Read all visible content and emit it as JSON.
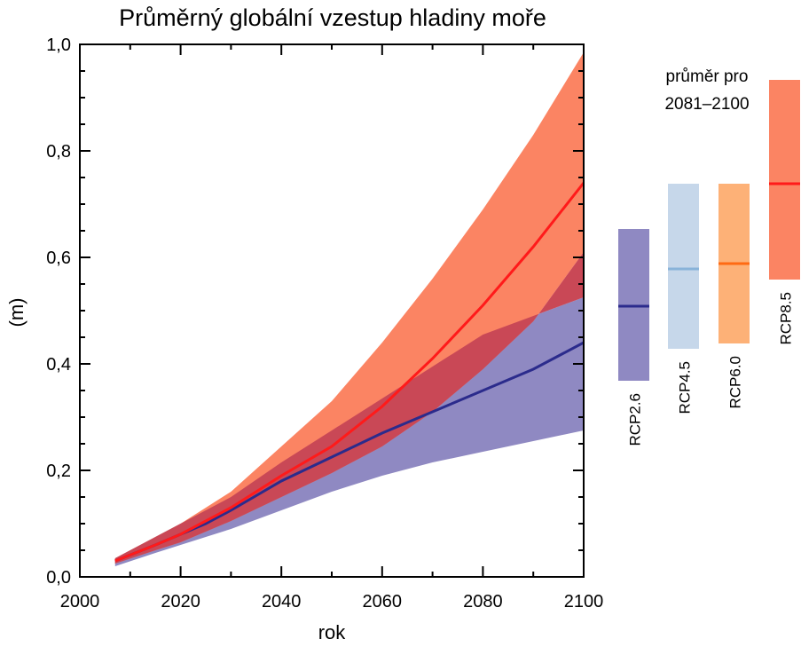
{
  "chart_data": {
    "type": "area",
    "title": "Průměrný globální vzestup hladiny moře",
    "xlabel": "rok",
    "ylabel": "(m)",
    "xlim": [
      2000,
      2100
    ],
    "ylim": [
      0.0,
      1.0
    ],
    "xticks": [
      2000,
      2020,
      2040,
      2060,
      2080,
      2100
    ],
    "xtick_labels": [
      "2000",
      "2020",
      "2040",
      "2060",
      "2080",
      "2100"
    ],
    "yticks": [
      0.0,
      0.2,
      0.4,
      0.6,
      0.8,
      1.0
    ],
    "ytick_labels": [
      "0,0",
      "0,2",
      "0,4",
      "0,6",
      "0,8",
      "1,0"
    ],
    "colors": {
      "rcp26_line": "#2b2b8c",
      "rcp26_band": "#8f89c2",
      "rcp85_line": "#ff1a1a",
      "rcp85_band": "#fb8463",
      "overlap_band": "#c94856"
    },
    "x": [
      2007,
      2015,
      2020,
      2025,
      2030,
      2040,
      2050,
      2060,
      2070,
      2080,
      2090,
      2100
    ],
    "series": [
      {
        "key": "rcp26",
        "mean": [
          0.03,
          0.06,
          0.08,
          0.1,
          0.125,
          0.18,
          0.225,
          0.27,
          0.31,
          0.35,
          0.39,
          0.44
        ],
        "low": [
          0.02,
          0.045,
          0.06,
          0.075,
          0.09,
          0.125,
          0.16,
          0.19,
          0.215,
          0.235,
          0.255,
          0.275
        ],
        "high": [
          0.035,
          0.075,
          0.1,
          0.125,
          0.15,
          0.215,
          0.275,
          0.335,
          0.395,
          0.455,
          0.49,
          0.525
        ]
      },
      {
        "key": "rcp85",
        "mean": [
          0.03,
          0.06,
          0.08,
          0.105,
          0.13,
          0.19,
          0.245,
          0.32,
          0.41,
          0.51,
          0.62,
          0.74
        ],
        "low": [
          0.025,
          0.05,
          0.065,
          0.085,
          0.105,
          0.15,
          0.195,
          0.245,
          0.31,
          0.39,
          0.48,
          0.61
        ],
        "high": [
          0.035,
          0.075,
          0.1,
          0.13,
          0.16,
          0.245,
          0.33,
          0.44,
          0.56,
          0.69,
          0.83,
          0.985
        ]
      }
    ],
    "side_panel": {
      "title_line1": "průměr pro",
      "title_line2": "2081–2100",
      "bars": [
        {
          "label": "RCP2.6",
          "low": 0.26,
          "mean": 0.4,
          "high": 0.545,
          "fill": "#8f89c2",
          "line": "#2b2b8c"
        },
        {
          "label": "RCP4.5",
          "low": 0.32,
          "mean": 0.47,
          "high": 0.63,
          "fill": "#c6d7ea",
          "line": "#89b3d9"
        },
        {
          "label": "RCP6.0",
          "low": 0.33,
          "mean": 0.48,
          "high": 0.63,
          "fill": "#fdb177",
          "line": "#ff6a13"
        },
        {
          "label": "RCP8.5",
          "low": 0.45,
          "mean": 0.63,
          "high": 0.825,
          "fill": "#fb8463",
          "line": "#ff1a1a"
        }
      ]
    }
  }
}
